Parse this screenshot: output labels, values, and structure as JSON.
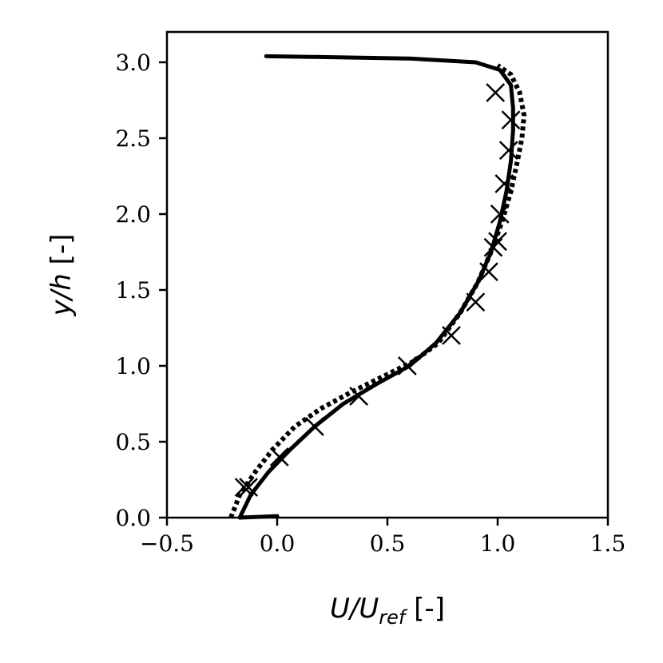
{
  "chart_data": {
    "type": "line",
    "xlabel": {
      "var": "U/U",
      "sub": "ref",
      "unit": " [-]"
    },
    "ylabel": {
      "var": "y/h",
      "unit": " [-]"
    },
    "xlim": [
      -0.5,
      1.5
    ],
    "ylim": [
      0.0,
      3.2
    ],
    "xticks": [
      -0.5,
      0.0,
      0.5,
      1.0,
      1.5
    ],
    "xtick_labels": [
      "−0.5",
      "0.0",
      "0.5",
      "1.0",
      "1.5"
    ],
    "yticks": [
      0.0,
      0.5,
      1.0,
      1.5,
      2.0,
      2.5,
      3.0
    ],
    "ytick_labels": [
      "0.0",
      "0.5",
      "1.0",
      "1.5",
      "2.0",
      "2.5",
      "3.0"
    ],
    "grid": false,
    "legend": "none",
    "series": [
      {
        "style": "solid",
        "x": [
          0.0,
          -0.17,
          -0.12,
          -0.04,
          0.06,
          0.17,
          0.3,
          0.45,
          0.6,
          0.72,
          0.83,
          0.91,
          0.97,
          1.01,
          1.04,
          1.06,
          1.07,
          1.07,
          1.06,
          1.01,
          0.9,
          0.6,
          0.2,
          -0.05
        ],
        "y": [
          0.01,
          0.0,
          0.15,
          0.3,
          0.45,
          0.6,
          0.75,
          0.88,
          1.0,
          1.15,
          1.35,
          1.55,
          1.75,
          1.95,
          2.15,
          2.35,
          2.55,
          2.7,
          2.85,
          2.95,
          3.0,
          3.025,
          3.035,
          3.04
        ]
      },
      {
        "style": "dotted",
        "x": [
          -0.21,
          -0.17,
          -0.1,
          -0.02,
          0.08,
          0.2,
          0.34,
          0.48,
          0.62,
          0.73,
          0.83,
          0.91,
          0.97,
          1.02,
          1.06,
          1.09,
          1.11,
          1.12,
          1.1,
          1.06,
          1.0
        ],
        "y": [
          0.0,
          0.15,
          0.3,
          0.45,
          0.6,
          0.72,
          0.83,
          0.93,
          1.03,
          1.15,
          1.35,
          1.55,
          1.75,
          1.95,
          2.15,
          2.35,
          2.5,
          2.65,
          2.8,
          2.92,
          2.98
        ]
      }
    ],
    "markers": {
      "symbol": "x",
      "x": [
        -0.15,
        -0.13,
        0.01,
        0.17,
        0.37,
        0.59,
        0.79,
        0.9,
        0.96,
        0.98,
        1.0,
        1.01,
        1.03,
        1.05,
        1.06,
        0.99
      ],
      "y": [
        0.2,
        0.2,
        0.4,
        0.6,
        0.8,
        1.0,
        1.2,
        1.42,
        1.62,
        1.78,
        1.82,
        2.0,
        2.2,
        2.42,
        2.62,
        2.8
      ]
    }
  }
}
